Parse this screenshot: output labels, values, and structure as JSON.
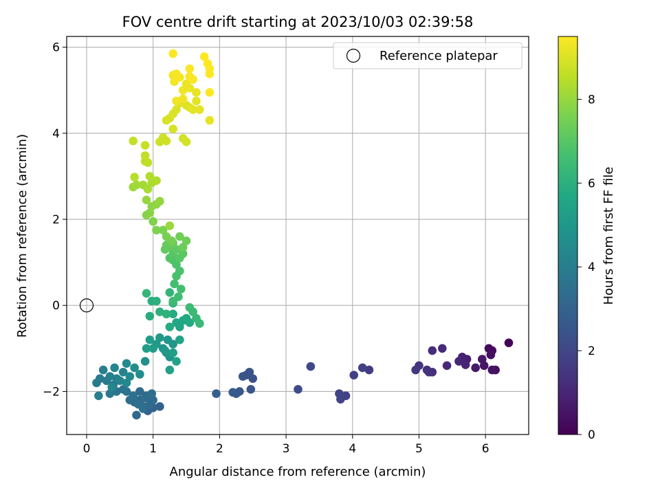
{
  "chart_data": {
    "type": "scatter",
    "title": "FOV centre drift starting at 2023/10/03 02:39:58",
    "xlabel": "Angular distance from reference (arcmin)",
    "ylabel": "Rotation from reference (arcmin)",
    "xlim": [
      -0.3,
      6.65
    ],
    "ylim": [
      -3.0,
      6.25
    ],
    "xticks": [
      0,
      1,
      2,
      3,
      4,
      5,
      6
    ],
    "xtick_labels": [
      "0",
      "1",
      "2",
      "3",
      "4",
      "5",
      "6"
    ],
    "yticks": [
      -2,
      0,
      2,
      4,
      6
    ],
    "ytick_labels": [
      "−2",
      "0",
      "2",
      "4",
      "6"
    ],
    "grid": true,
    "legend": {
      "position": "top-right",
      "entries": [
        "Reference platepar"
      ]
    },
    "reference_point": {
      "x": 0,
      "y": 0,
      "marker": "open-circle"
    },
    "colorbar": {
      "label": "Hours from first FF file",
      "range": [
        0,
        9.5
      ],
      "ticks": [
        0,
        2,
        4,
        6,
        8
      ],
      "tick_labels": [
        "0",
        "2",
        "4",
        "6",
        "8"
      ],
      "colormap": "viridis"
    },
    "points": [
      [
        6.35,
        -0.87,
        0.05
      ],
      [
        6.05,
        -1.0,
        0.2
      ],
      [
        6.1,
        -1.05,
        0.3
      ],
      [
        6.08,
        -1.15,
        0.35
      ],
      [
        6.15,
        -1.5,
        0.4
      ],
      [
        6.1,
        -1.5,
        0.45
      ],
      [
        5.98,
        -1.4,
        0.55
      ],
      [
        5.95,
        -1.25,
        0.6
      ],
      [
        5.85,
        -1.45,
        0.7
      ],
      [
        5.72,
        -1.25,
        0.8
      ],
      [
        5.65,
        -1.2,
        0.9
      ],
      [
        5.7,
        -1.38,
        0.95
      ],
      [
        5.6,
        -1.3,
        1.0
      ],
      [
        5.42,
        -1.4,
        1.1
      ],
      [
        5.35,
        -1.0,
        1.15
      ],
      [
        5.2,
        -1.05,
        1.2
      ],
      [
        5.2,
        -1.55,
        1.3
      ],
      [
        5.15,
        -1.55,
        1.35
      ],
      [
        5.12,
        -1.5,
        1.4
      ],
      [
        5.0,
        -1.4,
        1.45
      ],
      [
        4.95,
        -1.5,
        1.5
      ],
      [
        4.25,
        -1.5,
        1.7
      ],
      [
        4.15,
        -1.45,
        1.75
      ],
      [
        4.02,
        -1.62,
        1.8
      ],
      [
        3.9,
        -2.1,
        1.85
      ],
      [
        3.82,
        -2.18,
        1.9
      ],
      [
        3.8,
        -2.05,
        1.95
      ],
      [
        3.37,
        -1.42,
        2.05
      ],
      [
        3.18,
        -1.95,
        2.15
      ],
      [
        2.5,
        -1.7,
        2.35
      ],
      [
        2.45,
        -1.55,
        2.4
      ],
      [
        2.4,
        -1.62,
        2.45
      ],
      [
        2.35,
        -1.65,
        2.5
      ],
      [
        2.47,
        -1.95,
        2.55
      ],
      [
        2.3,
        -2.0,
        2.6
      ],
      [
        2.25,
        -2.05,
        2.65
      ],
      [
        2.2,
        -2.02,
        2.7
      ],
      [
        1.95,
        -2.05,
        2.8
      ],
      [
        1.1,
        -2.35,
        2.9
      ],
      [
        1.0,
        -2.38,
        2.95
      ],
      [
        0.92,
        -2.45,
        3.0
      ],
      [
        0.85,
        -2.35,
        3.05
      ],
      [
        0.75,
        -2.55,
        3.1
      ],
      [
        0.8,
        -2.2,
        3.15
      ],
      [
        0.9,
        -2.1,
        3.2
      ],
      [
        1.0,
        -2.2,
        3.25
      ],
      [
        0.95,
        -2.3,
        3.25
      ],
      [
        0.8,
        -2.0,
        3.3
      ],
      [
        0.72,
        -2.25,
        3.35
      ],
      [
        0.65,
        -2.2,
        3.4
      ],
      [
        0.88,
        -2.15,
        3.4
      ],
      [
        0.98,
        -2.05,
        3.45
      ],
      [
        0.78,
        -2.3,
        3.45
      ],
      [
        0.85,
        -2.4,
        3.5
      ],
      [
        0.7,
        -2.1,
        3.55
      ],
      [
        0.6,
        -2.0,
        3.6
      ],
      [
        0.55,
        -1.95,
        3.65
      ],
      [
        0.45,
        -2.0,
        3.7
      ],
      [
        0.35,
        -2.05,
        3.75
      ],
      [
        0.4,
        -1.85,
        3.8
      ],
      [
        0.3,
        -1.75,
        3.85
      ],
      [
        0.2,
        -1.7,
        3.9
      ],
      [
        0.15,
        -1.8,
        3.95
      ],
      [
        0.18,
        -2.1,
        4.0
      ],
      [
        0.25,
        -1.5,
        4.05
      ],
      [
        0.35,
        -1.65,
        4.1
      ],
      [
        0.45,
        -1.7,
        4.15
      ],
      [
        0.55,
        -1.55,
        4.2
      ],
      [
        0.5,
        -1.75,
        4.25
      ],
      [
        0.42,
        -1.45,
        4.3
      ],
      [
        0.38,
        -1.9,
        4.35
      ],
      [
        0.6,
        -1.8,
        4.4
      ],
      [
        0.65,
        -1.65,
        4.45
      ],
      [
        0.6,
        -1.35,
        4.5
      ],
      [
        0.72,
        -1.45,
        4.55
      ],
      [
        0.8,
        -1.6,
        4.6
      ],
      [
        0.88,
        -1.3,
        4.7
      ],
      [
        1.15,
        -1.0,
        4.8
      ],
      [
        1.2,
        -1.1,
        4.85
      ],
      [
        1.25,
        -1.2,
        4.9
      ],
      [
        1.3,
        -0.9,
        4.95
      ],
      [
        1.22,
        -0.8,
        5.0
      ],
      [
        1.18,
        -1.05,
        5.05
      ],
      [
        1.1,
        -0.75,
        5.1
      ],
      [
        1.05,
        -0.9,
        5.15
      ],
      [
        1.0,
        -1.0,
        5.2
      ],
      [
        0.95,
        -0.8,
        5.25
      ],
      [
        0.9,
        -1.0,
        5.3
      ],
      [
        1.3,
        -1.1,
        5.35
      ],
      [
        1.25,
        -1.5,
        5.4
      ],
      [
        1.35,
        -1.3,
        5.45
      ],
      [
        1.4,
        -0.8,
        5.5
      ],
      [
        1.4,
        -0.5,
        5.55
      ],
      [
        1.35,
        -0.4,
        5.6
      ],
      [
        1.45,
        -0.35,
        5.65
      ],
      [
        1.5,
        -0.3,
        5.7
      ],
      [
        1.55,
        -0.4,
        5.75
      ],
      [
        1.3,
        -0.2,
        5.8
      ],
      [
        1.25,
        -0.5,
        5.85
      ],
      [
        0.95,
        -0.25,
        5.9
      ],
      [
        0.98,
        0.1,
        5.95
      ],
      [
        1.05,
        0.1,
        6.0
      ],
      [
        1.1,
        -0.15,
        6.05
      ],
      [
        1.2,
        -0.2,
        6.1
      ],
      [
        1.3,
        0.05,
        6.15
      ],
      [
        1.25,
        0.3,
        6.2
      ],
      [
        0.9,
        0.28,
        6.25
      ],
      [
        1.65,
        -0.3,
        6.3
      ],
      [
        1.7,
        -0.42,
        6.35
      ],
      [
        1.6,
        -0.15,
        6.4
      ],
      [
        1.55,
        -0.05,
        6.45
      ],
      [
        1.3,
        0.1,
        6.5
      ],
      [
        1.38,
        0.2,
        6.55
      ],
      [
        1.42,
        0.38,
        6.6
      ],
      [
        1.32,
        0.5,
        6.65
      ],
      [
        1.35,
        0.68,
        6.7
      ],
      [
        1.4,
        0.8,
        6.75
      ],
      [
        1.35,
        0.95,
        6.8
      ],
      [
        1.3,
        1.05,
        6.85
      ],
      [
        1.25,
        1.1,
        6.9
      ],
      [
        1.3,
        1.2,
        6.95
      ],
      [
        1.4,
        1.1,
        7.0
      ],
      [
        1.45,
        1.2,
        7.05
      ],
      [
        1.35,
        1.3,
        7.1
      ],
      [
        1.25,
        1.35,
        7.15
      ],
      [
        1.18,
        1.3,
        7.2
      ],
      [
        1.2,
        1.4,
        7.25
      ],
      [
        1.3,
        1.45,
        7.3
      ],
      [
        1.45,
        1.35,
        7.35
      ],
      [
        1.5,
        1.5,
        7.4
      ],
      [
        1.4,
        1.6,
        7.45
      ],
      [
        1.28,
        1.5,
        7.5
      ],
      [
        1.2,
        1.6,
        7.55
      ],
      [
        1.15,
        1.75,
        7.6
      ],
      [
        1.05,
        1.75,
        7.65
      ],
      [
        1.0,
        1.95,
        7.7
      ],
      [
        0.9,
        2.1,
        7.75
      ],
      [
        0.95,
        2.15,
        7.8
      ],
      [
        0.98,
        2.3,
        7.85
      ],
      [
        1.05,
        2.35,
        7.9
      ],
      [
        1.1,
        2.42,
        7.95
      ],
      [
        0.9,
        2.45,
        8.0
      ],
      [
        1.25,
        1.85,
        8.05
      ],
      [
        0.7,
        2.75,
        8.1
      ],
      [
        0.75,
        2.8,
        8.15
      ],
      [
        0.85,
        2.8,
        8.2
      ],
      [
        0.92,
        2.7,
        8.25
      ],
      [
        0.98,
        2.85,
        8.3
      ],
      [
        1.05,
        2.9,
        8.35
      ],
      [
        0.95,
        3.0,
        8.4
      ],
      [
        0.72,
        2.98,
        8.45
      ],
      [
        0.88,
        3.35,
        8.5
      ],
      [
        0.92,
        3.32,
        8.55
      ],
      [
        0.88,
        3.48,
        8.6
      ],
      [
        0.7,
        3.82,
        8.65
      ],
      [
        0.88,
        3.72,
        8.7
      ],
      [
        1.1,
        3.8,
        8.75
      ],
      [
        1.15,
        3.9,
        8.8
      ],
      [
        1.2,
        3.82,
        8.82
      ],
      [
        1.45,
        3.88,
        8.85
      ],
      [
        1.5,
        3.8,
        8.88
      ],
      [
        1.3,
        4.1,
        8.9
      ],
      [
        1.25,
        4.35,
        8.92
      ],
      [
        1.2,
        4.3,
        8.95
      ],
      [
        1.3,
        4.45,
        8.98
      ],
      [
        1.35,
        4.55,
        9.0
      ],
      [
        1.4,
        4.7,
        9.02
      ],
      [
        1.5,
        4.65,
        9.05
      ],
      [
        1.55,
        4.6,
        9.08
      ],
      [
        1.6,
        4.55,
        9.1
      ],
      [
        1.65,
        4.75,
        9.12
      ],
      [
        1.7,
        4.55,
        9.15
      ],
      [
        1.85,
        4.3,
        9.18
      ],
      [
        1.65,
        4.95,
        9.2
      ],
      [
        1.55,
        5.05,
        9.22
      ],
      [
        1.5,
        5.15,
        9.25
      ],
      [
        1.45,
        5.0,
        9.28
      ],
      [
        1.45,
        4.8,
        9.3
      ],
      [
        1.35,
        4.75,
        9.32
      ],
      [
        1.32,
        5.2,
        9.35
      ],
      [
        1.3,
        5.35,
        9.38
      ],
      [
        1.35,
        5.38,
        9.4
      ],
      [
        1.4,
        5.3,
        9.42
      ],
      [
        1.55,
        5.32,
        9.44
      ],
      [
        1.6,
        5.25,
        9.45
      ],
      [
        1.55,
        5.5,
        9.47
      ],
      [
        1.3,
        5.85,
        9.48
      ],
      [
        1.77,
        5.78,
        9.49
      ],
      [
        1.82,
        5.62,
        9.5
      ],
      [
        1.85,
        5.5,
        9.5
      ],
      [
        1.85,
        5.38,
        9.5
      ],
      [
        1.85,
        4.95,
        9.5
      ]
    ]
  }
}
